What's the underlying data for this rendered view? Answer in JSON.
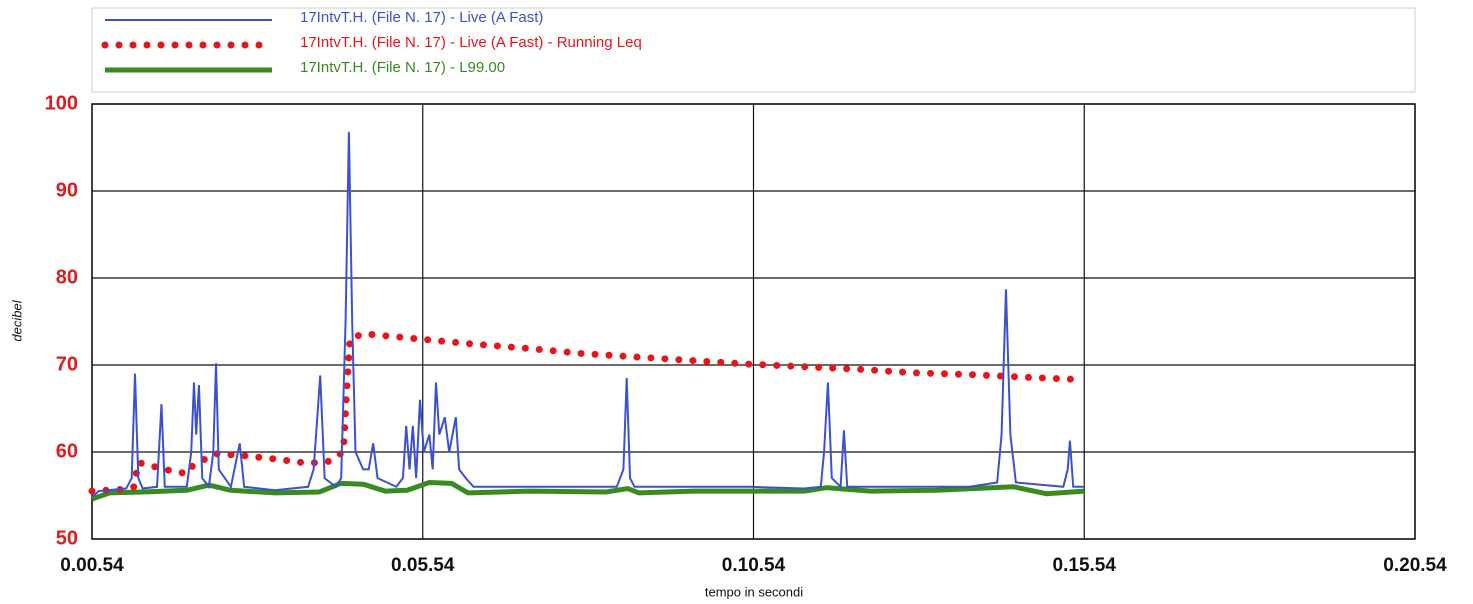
{
  "chart_data": {
    "type": "line",
    "ylabel": "decibel",
    "xlabel": "tempo in secondi",
    "xlim": [
      54,
      1254
    ],
    "xticks": [
      {
        "value": 54,
        "label": "0.00.54"
      },
      {
        "value": 354,
        "label": "0.05.54"
      },
      {
        "value": 654,
        "label": "0.10.54"
      },
      {
        "value": 954,
        "label": "0.15.54"
      },
      {
        "value": 1254,
        "label": "0.20.54"
      }
    ],
    "ylim": [
      50,
      100
    ],
    "yticks": [
      50,
      60,
      70,
      80,
      90,
      100
    ],
    "grid": true,
    "legend": "top",
    "series": [
      {
        "name": "17IntvT.H. (File N. 17) - Live (A Fast)",
        "color": "#3a52d0",
        "style": "solid",
        "x": [
          54,
          60,
          85,
          90,
          93,
          96,
          100,
          113,
          117,
          120,
          140,
          144,
          146.5,
          148.5,
          151,
          154,
          160,
          164,
          166.5,
          169,
          180,
          188,
          192,
          220,
          250,
          255,
          261,
          265,
          275,
          280,
          284,
          287,
          290,
          293,
          300,
          305,
          309,
          313,
          330,
          336,
          339,
          342,
          345,
          348,
          351.5,
          355,
          360,
          363,
          366,
          369,
          374,
          378,
          384,
          387,
          393,
          400,
          450,
          500,
          530,
          536,
          539,
          542,
          546,
          600,
          650,
          700,
          715,
          718,
          721.5,
          725,
          733,
          736,
          739,
          790,
          850,
          875,
          879,
          883,
          887,
          892,
          935,
          939,
          941,
          944,
          954
        ],
        "values": [
          54.8,
          55.5,
          55.8,
          57,
          69,
          57,
          55.8,
          56,
          65.5,
          56,
          56,
          60,
          68,
          62,
          67.7,
          57,
          56,
          60,
          70.2,
          58,
          56,
          61,
          56,
          55.6,
          56,
          58,
          68.8,
          57,
          56,
          57,
          75,
          96.8,
          75,
          60,
          58,
          58,
          61,
          57,
          56,
          57,
          63,
          58,
          63,
          57,
          66,
          60,
          62,
          58,
          68,
          62,
          64,
          60,
          64,
          58,
          57,
          56,
          56,
          56,
          56,
          58,
          68.5,
          57,
          56,
          56,
          56,
          55.8,
          56,
          60,
          68,
          57,
          56,
          62.5,
          56,
          56,
          56,
          56.5,
          62,
          78.7,
          62,
          56.5,
          56,
          58,
          61.3,
          56,
          56
        ]
      },
      {
        "name": "17IntvT.H. (File N. 17) - Live (A Fast) - Running Leq",
        "color": "#e8141c",
        "style": "dotted",
        "x": [
          54,
          80,
          92,
          96,
          120,
          140,
          146,
          166,
          190,
          220,
          250,
          268,
          282,
          285,
          288,
          300,
          350,
          400,
          450,
          500,
          550,
          600,
          650,
          700,
          750,
          800,
          850,
          900,
          954
        ],
        "values": [
          55.5,
          55.7,
          56,
          58.8,
          58,
          57.5,
          58.5,
          59.8,
          59.6,
          59.2,
          58.7,
          58.9,
          60,
          67,
          73,
          73.6,
          73,
          72.4,
          71.9,
          71.3,
          70.9,
          70.5,
          70.1,
          69.8,
          69.5,
          69.1,
          68.9,
          68.6,
          68.3
        ]
      },
      {
        "name": "17IntvT.H. (File N. 17) - L99.00",
        "color": "#3a8a22",
        "style": "thick",
        "x": [
          54,
          70,
          100,
          140,
          160,
          180,
          220,
          260,
          280,
          300,
          320,
          340,
          360,
          380,
          395,
          450,
          520,
          540,
          550,
          600,
          700,
          720,
          760,
          820,
          890,
          920,
          954
        ],
        "values": [
          54.6,
          55.3,
          55.4,
          55.6,
          56.2,
          55.6,
          55.3,
          55.4,
          56.4,
          56.3,
          55.5,
          55.6,
          56.5,
          56.4,
          55.3,
          55.5,
          55.4,
          55.8,
          55.3,
          55.5,
          55.5,
          55.9,
          55.5,
          55.6,
          56,
          55.2,
          55.5
        ]
      }
    ]
  }
}
